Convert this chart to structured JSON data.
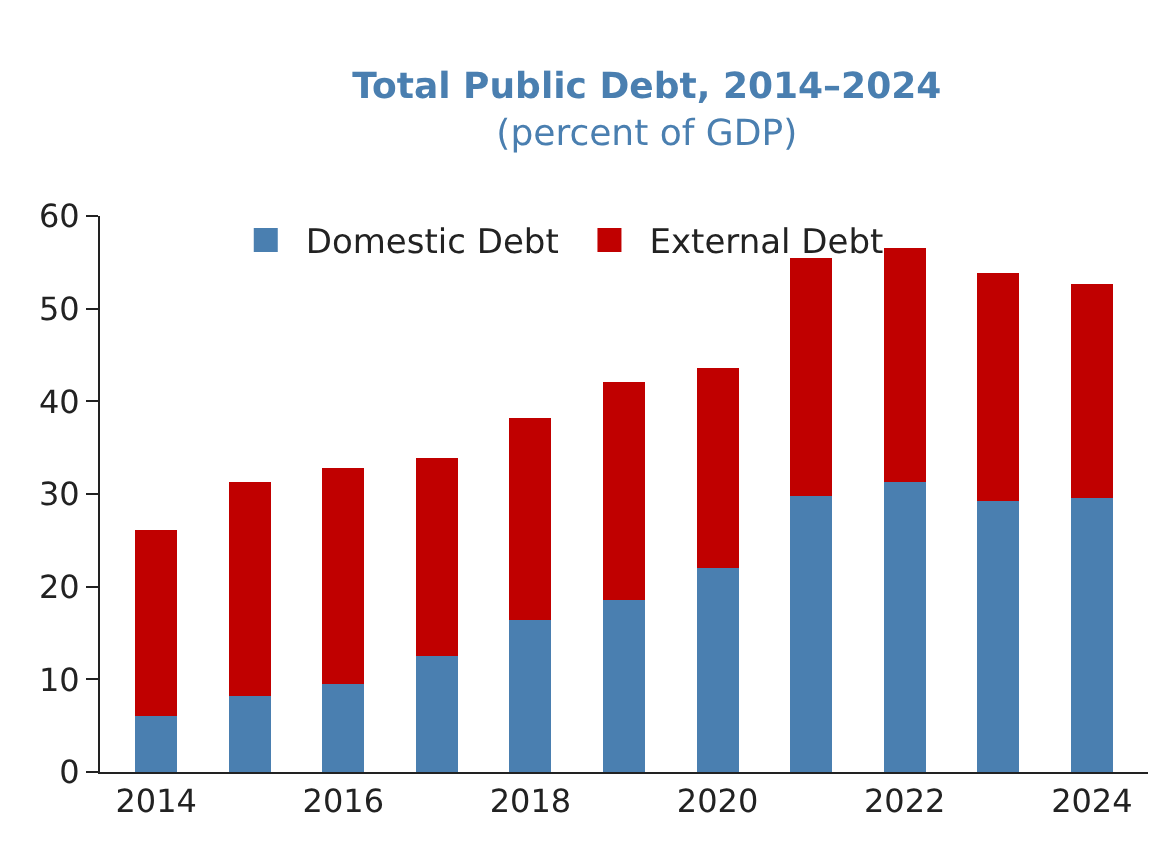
{
  "chart_data": {
    "type": "bar",
    "title": "Total Public Debt, 2014–2024",
    "subtitle": "(percent of GDP)",
    "stacked": true,
    "x": [
      2014,
      2015,
      2016,
      2017,
      2018,
      2019,
      2020,
      2021,
      2022,
      2023,
      2024
    ],
    "series": [
      {
        "name": "Domestic Debt",
        "color": "#4a7fb0",
        "values": [
          6.0,
          8.2,
          9.5,
          12.5,
          16.4,
          18.6,
          22.0,
          29.8,
          31.3,
          29.2,
          29.6
        ]
      },
      {
        "name": "External Debt",
        "color": "#c00000",
        "values": [
          20.1,
          23.1,
          23.3,
          21.4,
          21.8,
          23.5,
          21.6,
          25.7,
          25.3,
          24.6,
          23.1
        ]
      }
    ],
    "xlim": [
      2013.4,
      2024.6
    ],
    "xticks": [
      2014,
      2016,
      2018,
      2020,
      2022,
      2024
    ],
    "ylim": [
      0,
      60
    ],
    "yticks": [
      0,
      10,
      20,
      30,
      40,
      50,
      60
    ],
    "grid": false,
    "legend": "top left"
  }
}
